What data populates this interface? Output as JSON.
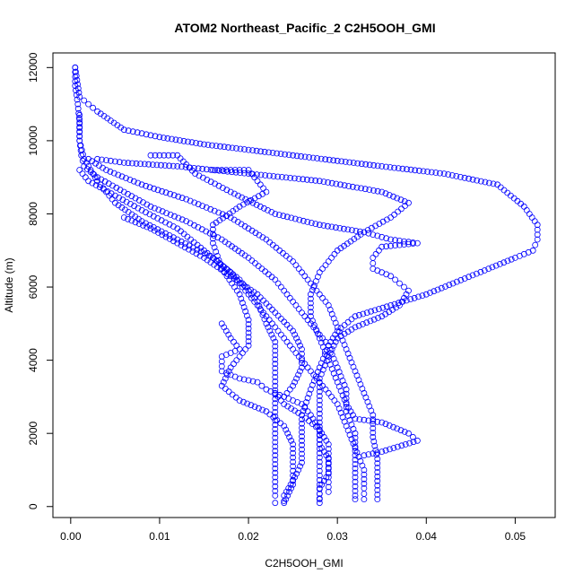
{
  "chart_data": {
    "type": "scatter",
    "title": "ATOM2 Northeast_Pacific_2 C2H5OOH_GMI",
    "xlabel": "C2H5OOH_GMI",
    "ylabel": "Altitude (m)",
    "xlim": [
      -0.002,
      0.0545
    ],
    "ylim": [
      -300,
      12400
    ],
    "xticks": [
      0.0,
      0.01,
      0.02,
      0.03,
      0.04,
      0.05
    ],
    "xtick_labels": [
      "0.00",
      "0.01",
      "0.02",
      "0.03",
      "0.04",
      "0.05"
    ],
    "yticks": [
      0,
      2000,
      4000,
      6000,
      8000,
      10000,
      12000
    ],
    "ytick_labels": [
      "0",
      "2000",
      "4000",
      "6000",
      "8000",
      "10000",
      "12000"
    ],
    "grid": false,
    "marker": "open-circle",
    "colors": {
      "points": "#0000ff",
      "axes": "#000000",
      "background": "#ffffff"
    },
    "series": [
      {
        "points": [
          [
            0.0005,
            12000
          ],
          [
            0.0005,
            11500
          ],
          [
            0.0008,
            11000
          ],
          [
            0.001,
            10500
          ],
          [
            0.001,
            10000
          ],
          [
            0.0012,
            9600
          ],
          [
            0.0015,
            9300
          ],
          [
            0.003,
            9000
          ],
          [
            0.006,
            8600
          ],
          [
            0.009,
            8200
          ],
          [
            0.013,
            7800
          ],
          [
            0.017,
            7300
          ],
          [
            0.02,
            6800
          ],
          [
            0.023,
            6200
          ],
          [
            0.025,
            5600
          ],
          [
            0.027,
            5000
          ],
          [
            0.029,
            4400
          ],
          [
            0.03,
            3800
          ],
          [
            0.031,
            3200
          ],
          [
            0.031,
            2600
          ],
          [
            0.032,
            2000
          ],
          [
            0.032,
            1400
          ],
          [
            0.032,
            800
          ],
          [
            0.032,
            300
          ],
          [
            0.032,
            200
          ]
        ]
      },
      {
        "points": [
          [
            0.0005,
            12000
          ],
          [
            0.001,
            11200
          ],
          [
            0.002,
            11000
          ],
          [
            0.003,
            10800
          ],
          [
            0.006,
            10300
          ],
          [
            0.01,
            10100
          ],
          [
            0.015,
            9900
          ],
          [
            0.025,
            9600
          ],
          [
            0.035,
            9300
          ],
          [
            0.042,
            9100
          ],
          [
            0.048,
            8800
          ],
          [
            0.051,
            8200
          ],
          [
            0.0525,
            7700
          ],
          [
            0.0525,
            7300
          ],
          [
            0.052,
            7000
          ],
          [
            0.05,
            6800
          ],
          [
            0.047,
            6500
          ],
          [
            0.043,
            6100
          ],
          [
            0.04,
            5800
          ],
          [
            0.036,
            5500
          ],
          [
            0.032,
            5200
          ],
          [
            0.03,
            4800
          ],
          [
            0.029,
            4400
          ],
          [
            0.028,
            3800
          ],
          [
            0.027,
            3200
          ],
          [
            0.026,
            2500
          ],
          [
            0.026,
            1800
          ],
          [
            0.026,
            1200
          ],
          [
            0.025,
            700
          ],
          [
            0.024,
            300
          ],
          [
            0.024,
            150
          ]
        ]
      },
      {
        "points": [
          [
            0.001,
            10700
          ],
          [
            0.001,
            10000
          ],
          [
            0.0015,
            9500
          ],
          [
            0.003,
            8900
          ],
          [
            0.005,
            8300
          ],
          [
            0.008,
            7800
          ],
          [
            0.012,
            7300
          ],
          [
            0.016,
            6800
          ],
          [
            0.019,
            6200
          ],
          [
            0.021,
            5600
          ],
          [
            0.022,
            5000
          ],
          [
            0.023,
            4500
          ],
          [
            0.023,
            3900
          ],
          [
            0.023,
            3300
          ],
          [
            0.023,
            2700
          ],
          [
            0.023,
            2000
          ],
          [
            0.023,
            1400
          ],
          [
            0.023,
            800
          ],
          [
            0.023,
            300
          ],
          [
            0.023,
            100
          ]
        ]
      },
      {
        "points": [
          [
            0.002,
            9500
          ],
          [
            0.004,
            9200
          ],
          [
            0.008,
            8800
          ],
          [
            0.013,
            8400
          ],
          [
            0.018,
            7900
          ],
          [
            0.022,
            7300
          ],
          [
            0.025,
            6700
          ],
          [
            0.027,
            6100
          ],
          [
            0.029,
            5500
          ],
          [
            0.03,
            4900
          ],
          [
            0.031,
            4300
          ],
          [
            0.032,
            3700
          ],
          [
            0.033,
            3100
          ],
          [
            0.034,
            2500
          ],
          [
            0.034,
            1900
          ],
          [
            0.0345,
            1300
          ],
          [
            0.0345,
            700
          ],
          [
            0.0345,
            200
          ]
        ]
      },
      {
        "points": [
          [
            0.001,
            9200
          ],
          [
            0.002,
            8900
          ],
          [
            0.005,
            8500
          ],
          [
            0.008,
            8100
          ],
          [
            0.012,
            7600
          ],
          [
            0.015,
            7000
          ],
          [
            0.018,
            6400
          ],
          [
            0.02,
            5800
          ],
          [
            0.022,
            5200
          ],
          [
            0.024,
            4600
          ],
          [
            0.026,
            4000
          ],
          [
            0.028,
            3400
          ],
          [
            0.03,
            2800
          ],
          [
            0.031,
            2200
          ],
          [
            0.032,
            1600
          ],
          [
            0.033,
            1000
          ],
          [
            0.033,
            500
          ],
          [
            0.033,
            200
          ]
        ]
      },
      {
        "points": [
          [
            0.016,
            9200
          ],
          [
            0.018,
            9200
          ],
          [
            0.02,
            9200
          ],
          [
            0.022,
            8600
          ],
          [
            0.019,
            8200
          ],
          [
            0.016,
            7700
          ],
          [
            0.016,
            7200
          ],
          [
            0.017,
            6500
          ],
          [
            0.019,
            5800
          ],
          [
            0.02,
            5100
          ],
          [
            0.02,
            4400
          ],
          [
            0.018,
            3800
          ],
          [
            0.017,
            3300
          ],
          [
            0.019,
            2900
          ],
          [
            0.022,
            2600
          ],
          [
            0.024,
            2200
          ],
          [
            0.025,
            1700
          ],
          [
            0.025,
            1100
          ],
          [
            0.025,
            600
          ],
          [
            0.024,
            100
          ]
        ]
      },
      {
        "points": [
          [
            0.009,
            9600
          ],
          [
            0.012,
            9600
          ],
          [
            0.014,
            9100
          ],
          [
            0.018,
            8600
          ],
          [
            0.023,
            8000
          ],
          [
            0.028,
            7700
          ],
          [
            0.033,
            7500
          ],
          [
            0.036,
            7300
          ],
          [
            0.039,
            7200
          ],
          [
            0.035,
            7100
          ],
          [
            0.034,
            6800
          ],
          [
            0.034,
            6500
          ],
          [
            0.036,
            6300
          ],
          [
            0.037,
            6100
          ],
          [
            0.038,
            5900
          ],
          [
            0.037,
            5500
          ],
          [
            0.035,
            5200
          ],
          [
            0.032,
            4900
          ],
          [
            0.03,
            4600
          ],
          [
            0.029,
            4100
          ],
          [
            0.028,
            3500
          ],
          [
            0.028,
            2900
          ],
          [
            0.028,
            2300
          ],
          [
            0.028,
            1700
          ],
          [
            0.028,
            1100
          ],
          [
            0.028,
            600
          ],
          [
            0.028,
            100
          ]
        ]
      },
      {
        "points": [
          [
            0.003,
            9500
          ],
          [
            0.006,
            9400
          ],
          [
            0.012,
            9300
          ],
          [
            0.02,
            9100
          ],
          [
            0.028,
            8900
          ],
          [
            0.035,
            8600
          ],
          [
            0.038,
            8300
          ],
          [
            0.036,
            7900
          ],
          [
            0.033,
            7500
          ],
          [
            0.03,
            7000
          ],
          [
            0.028,
            6400
          ],
          [
            0.027,
            5800
          ],
          [
            0.027,
            5200
          ],
          [
            0.028,
            4600
          ],
          [
            0.029,
            4000
          ],
          [
            0.03,
            3400
          ],
          [
            0.031,
            2800
          ],
          [
            0.032,
            2400
          ],
          [
            0.035,
            2300
          ],
          [
            0.038,
            2000
          ],
          [
            0.039,
            1800
          ],
          [
            0.035,
            1500
          ],
          [
            0.033,
            1400
          ]
        ]
      },
      {
        "points": [
          [
            0.006,
            7900
          ],
          [
            0.009,
            7600
          ],
          [
            0.012,
            7200
          ],
          [
            0.015,
            6800
          ],
          [
            0.018,
            6300
          ],
          [
            0.021,
            5800
          ],
          [
            0.023,
            5300
          ],
          [
            0.025,
            4800
          ],
          [
            0.026,
            4300
          ],
          [
            0.026,
            3800
          ],
          [
            0.025,
            3300
          ],
          [
            0.024,
            3000
          ],
          [
            0.023,
            3100
          ],
          [
            0.024,
            2800
          ],
          [
            0.026,
            2500
          ],
          [
            0.028,
            2100
          ],
          [
            0.029,
            1700
          ],
          [
            0.029,
            1200
          ],
          [
            0.029,
            800
          ],
          [
            0.029,
            400
          ]
        ]
      },
      {
        "points": [
          [
            0.017,
            5000
          ],
          [
            0.018,
            4600
          ],
          [
            0.019,
            4300
          ],
          [
            0.017,
            4100
          ],
          [
            0.017,
            3700
          ],
          [
            0.019,
            3500
          ],
          [
            0.021,
            3400
          ],
          [
            0.022,
            3200
          ],
          [
            0.024,
            3000
          ],
          [
            0.026,
            2800
          ],
          [
            0.027,
            2500
          ],
          [
            0.028,
            2100
          ],
          [
            0.028,
            1700
          ],
          [
            0.029,
            1300
          ],
          [
            0.029,
            900
          ],
          [
            0.028,
            500
          ],
          [
            0.028,
            200
          ]
        ]
      }
    ]
  }
}
